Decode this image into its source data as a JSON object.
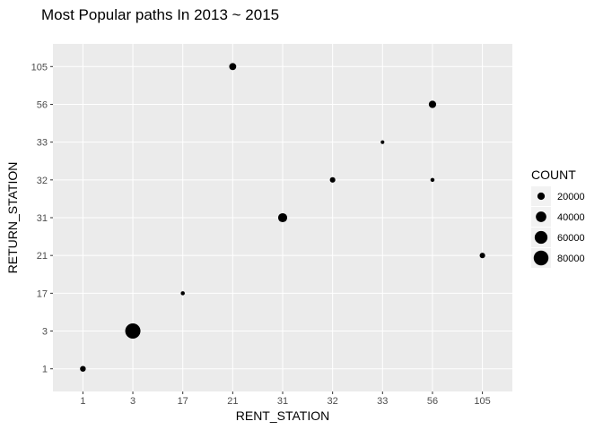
{
  "chart_data": {
    "type": "scatter",
    "title": "Most Popular paths In 2013 ~ 2015",
    "xlabel": "RENT_STATION",
    "ylabel": "RETURN_STATION",
    "x_categories": [
      "1",
      "3",
      "17",
      "21",
      "31",
      "32",
      "33",
      "56",
      "105"
    ],
    "y_categories": [
      "1",
      "3",
      "17",
      "21",
      "31",
      "32",
      "33",
      "56",
      "105"
    ],
    "points": [
      {
        "x": "1",
        "y": "1",
        "count": 12000
      },
      {
        "x": "3",
        "y": "3",
        "count": 85000
      },
      {
        "x": "17",
        "y": "17",
        "count": 6000
      },
      {
        "x": "21",
        "y": "105",
        "count": 18000
      },
      {
        "x": "31",
        "y": "31",
        "count": 30000
      },
      {
        "x": "32",
        "y": "32",
        "count": 11000
      },
      {
        "x": "33",
        "y": "33",
        "count": 5000
      },
      {
        "x": "56",
        "y": "56",
        "count": 20000
      },
      {
        "x": "56",
        "y": "32",
        "count": 6000
      },
      {
        "x": "105",
        "y": "21",
        "count": 11000
      }
    ],
    "size_legend": {
      "title": "COUNT",
      "breaks": [
        20000,
        40000,
        60000,
        80000
      ],
      "labels": [
        "20000",
        "40000",
        "60000",
        "80000"
      ]
    },
    "grid": true,
    "legend_position": "right",
    "colors": {
      "panel_background": "#ebebeb",
      "grid_line": "#ffffff",
      "point": "#000000",
      "tick_text": "#4d4d4d"
    }
  }
}
